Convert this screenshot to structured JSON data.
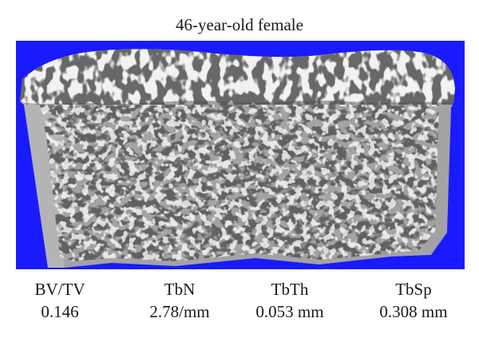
{
  "title": "46-year-old female",
  "colors": {
    "background_blue": "#1a1aff",
    "bone_grey": "#a3a3a3",
    "cortex_white": "#f2f2f2",
    "pore_dark": "#1e1e1e"
  },
  "metrics": [
    {
      "label": "BV/TV",
      "value": "0.146"
    },
    {
      "label": "TbN",
      "value": "2.78/mm"
    },
    {
      "label": "TbTh",
      "value": "0.053 mm"
    },
    {
      "label": "TbSp",
      "value": "0.308 mm"
    }
  ]
}
